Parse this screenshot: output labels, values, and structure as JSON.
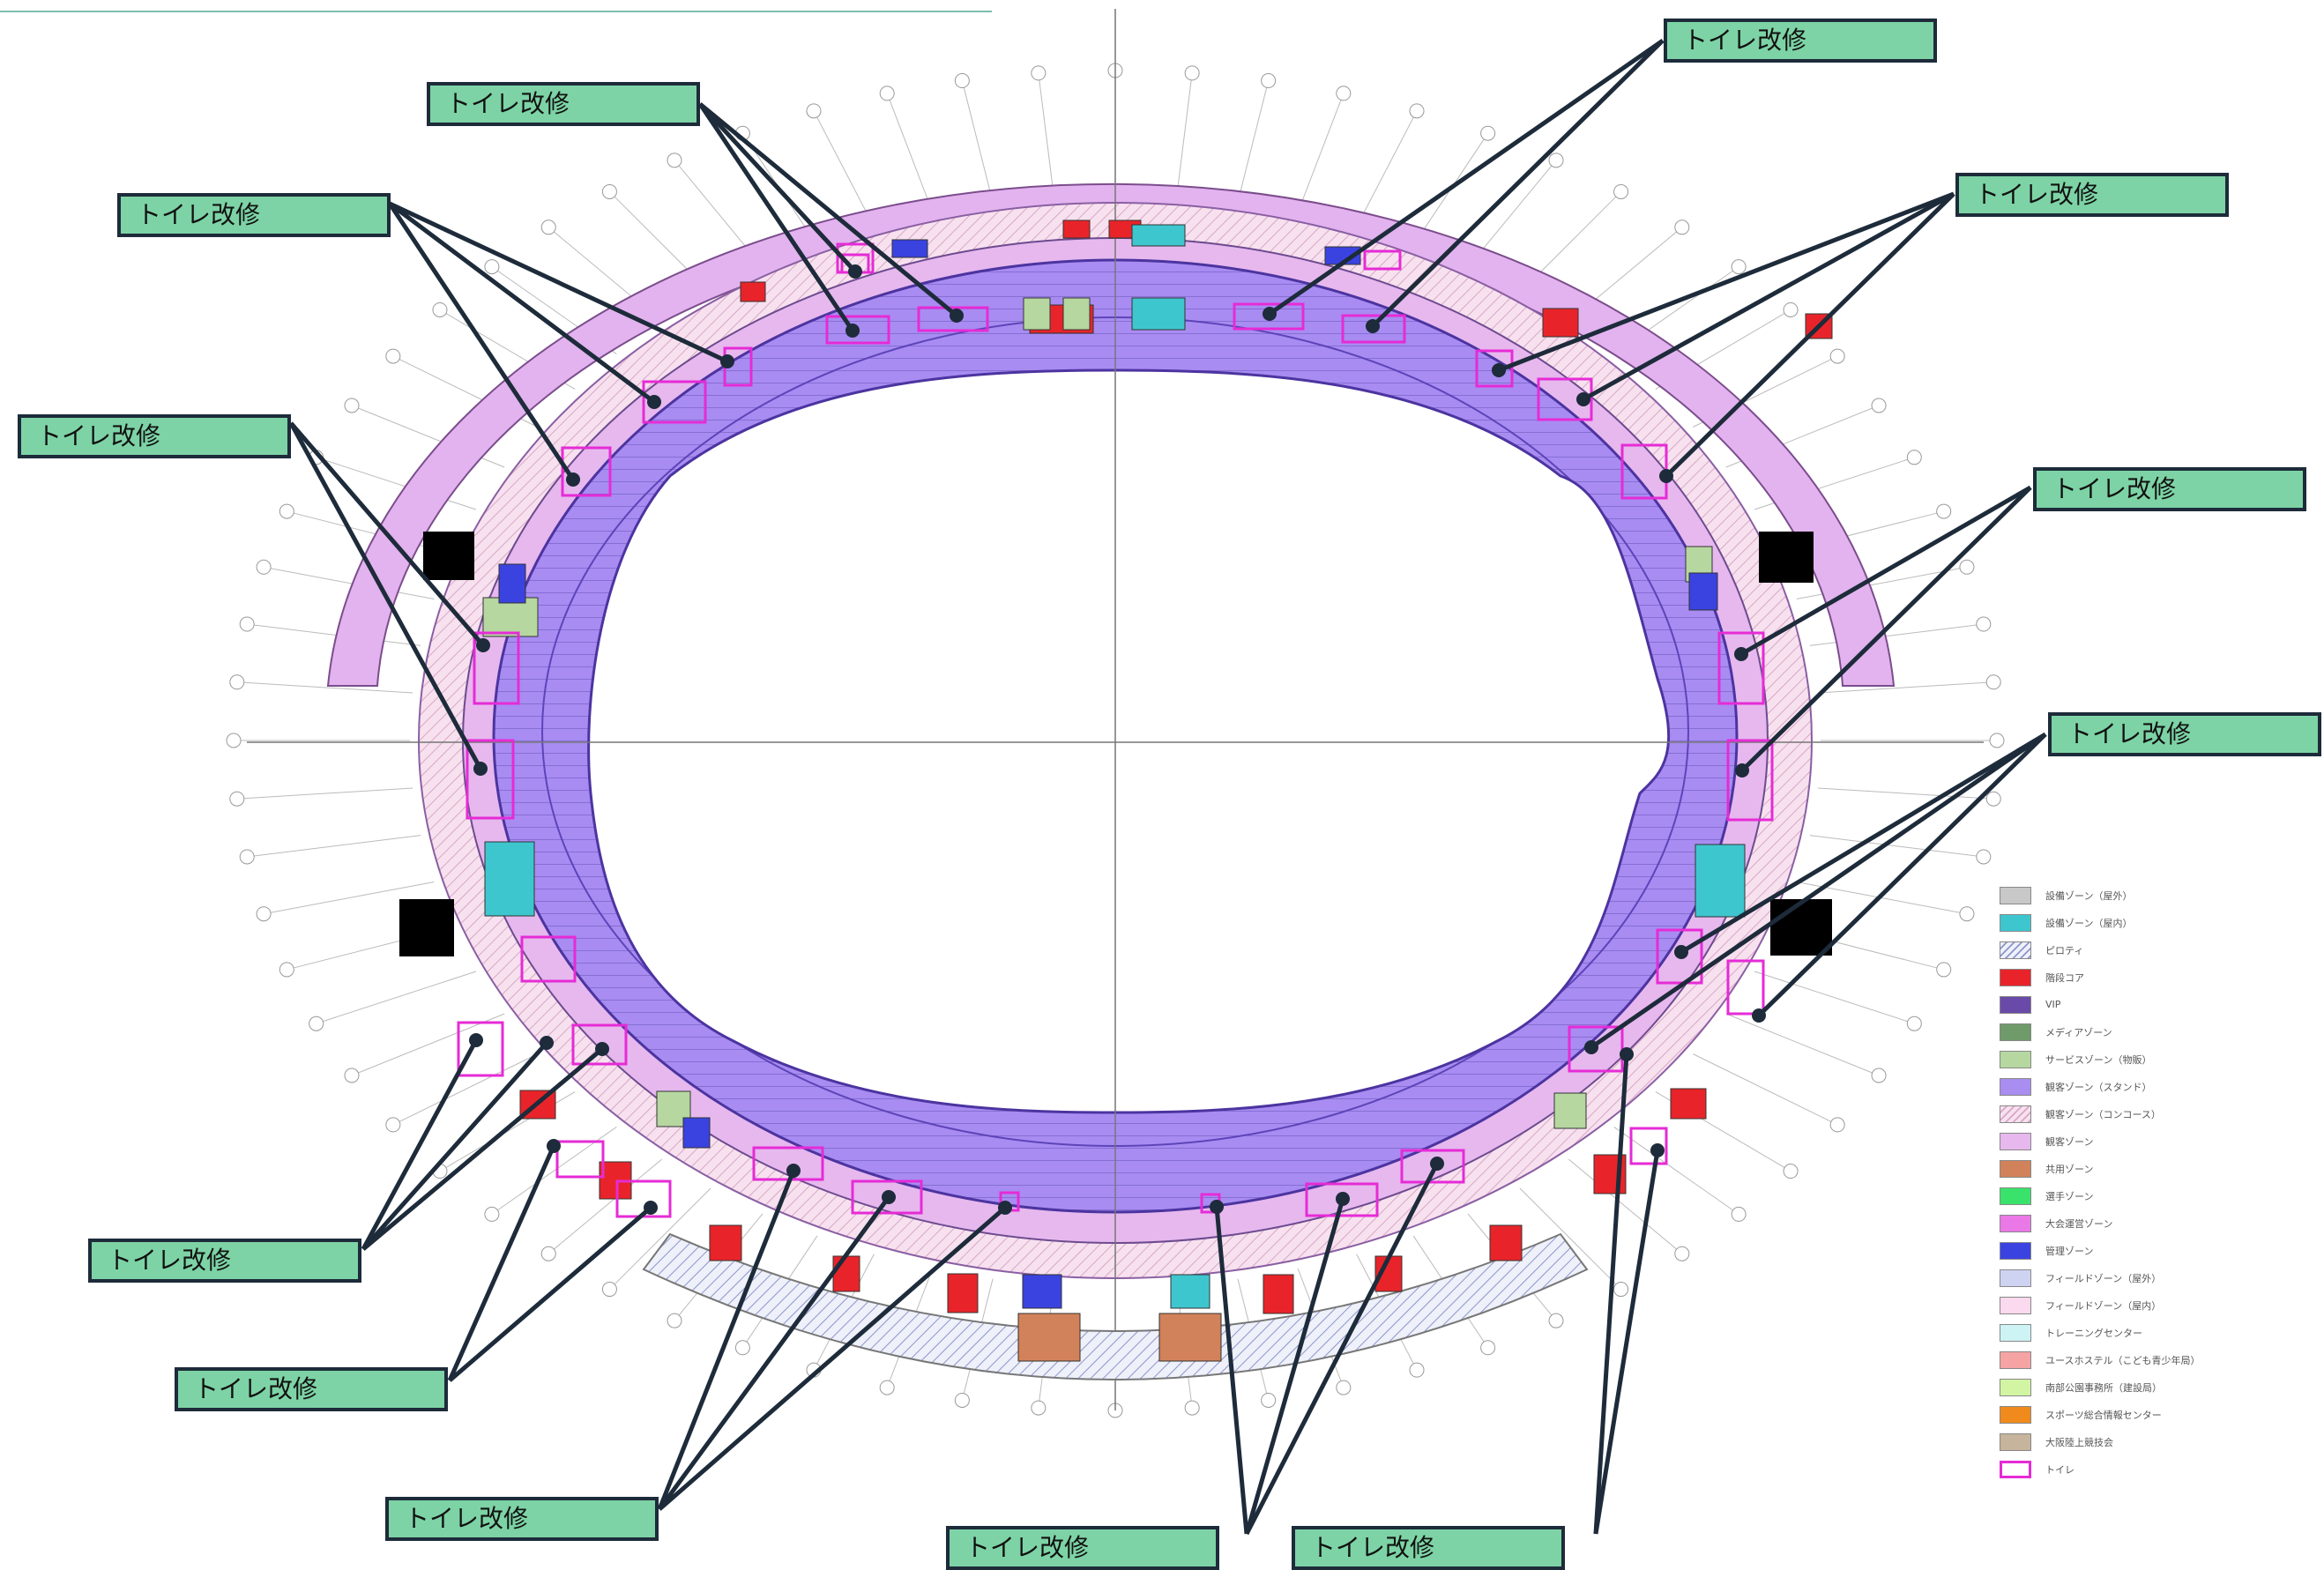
{
  "callout_label": "トイレ改修",
  "legend": [
    {
      "label": "設備ゾーン（屋外）",
      "color": "#c8c8c8",
      "pattern": "solid"
    },
    {
      "label": "設備ゾーン（屋内）",
      "color": "#3ec6cf",
      "pattern": "solid"
    },
    {
      "label": "ピロティ",
      "color": "#c9cde6",
      "pattern": "hatch-blue"
    },
    {
      "label": "階段コア",
      "color": "#e8242a",
      "pattern": "solid"
    },
    {
      "label": "VIP",
      "color": "#6a4aa8",
      "pattern": "solid"
    },
    {
      "label": "メディアゾーン",
      "color": "#6f9a6a",
      "pattern": "solid"
    },
    {
      "label": "サービスゾーン（物販）",
      "color": "#b6d7a0",
      "pattern": "solid"
    },
    {
      "label": "観客ゾーン（スタンド）",
      "color": "#a98df0",
      "pattern": "solid"
    },
    {
      "label": "観客ゾーン（コンコース）",
      "color": "#f3d3e6",
      "pattern": "hatch-pink"
    },
    {
      "label": "観客ゾーン",
      "color": "#e6b8ee",
      "pattern": "solid"
    },
    {
      "label": "共用ゾーン",
      "color": "#d1825a",
      "pattern": "solid"
    },
    {
      "label": "選手ゾーン",
      "color": "#39e36b",
      "pattern": "solid"
    },
    {
      "label": "大会運営ゾーン",
      "color": "#ea78e6",
      "pattern": "solid"
    },
    {
      "label": "管理ゾーン",
      "color": "#3a43e0",
      "pattern": "solid"
    },
    {
      "label": "フィールドゾーン（屋外）",
      "color": "#cfd3f2",
      "pattern": "solid"
    },
    {
      "label": "フィールドゾーン（屋内）",
      "color": "#fbd9ee",
      "pattern": "solid"
    },
    {
      "label": "トレーニングセンター",
      "color": "#cdf3f4",
      "pattern": "solid"
    },
    {
      "label": "ユースホステル（こども青少年局）",
      "color": "#f5a3a3",
      "pattern": "solid"
    },
    {
      "label": "南部公園事務所（建設局）",
      "color": "#d2f5a3",
      "pattern": "solid"
    },
    {
      "label": "スポーツ総合情報センター",
      "color": "#f08a1c",
      "pattern": "solid"
    },
    {
      "label": "大阪陸上競技会",
      "color": "#c7b49c",
      "pattern": "solid"
    },
    {
      "label": "トイレ",
      "color": "#e62bd6",
      "pattern": "outline"
    }
  ],
  "colors": {
    "outer_ring": "#e2b3ee",
    "concourse": "#f3d6ea",
    "stand": "#a88cf2",
    "stand_inner": "#8a6ee6",
    "field": "#ffffff",
    "toilet_outline": "#e62bd6",
    "callout_fill": "#7dd3a5",
    "callout_border": "#1d2b3a",
    "stair_core": "#e8242a",
    "management": "#3a43e0",
    "equipment": "#3ec6cf"
  }
}
